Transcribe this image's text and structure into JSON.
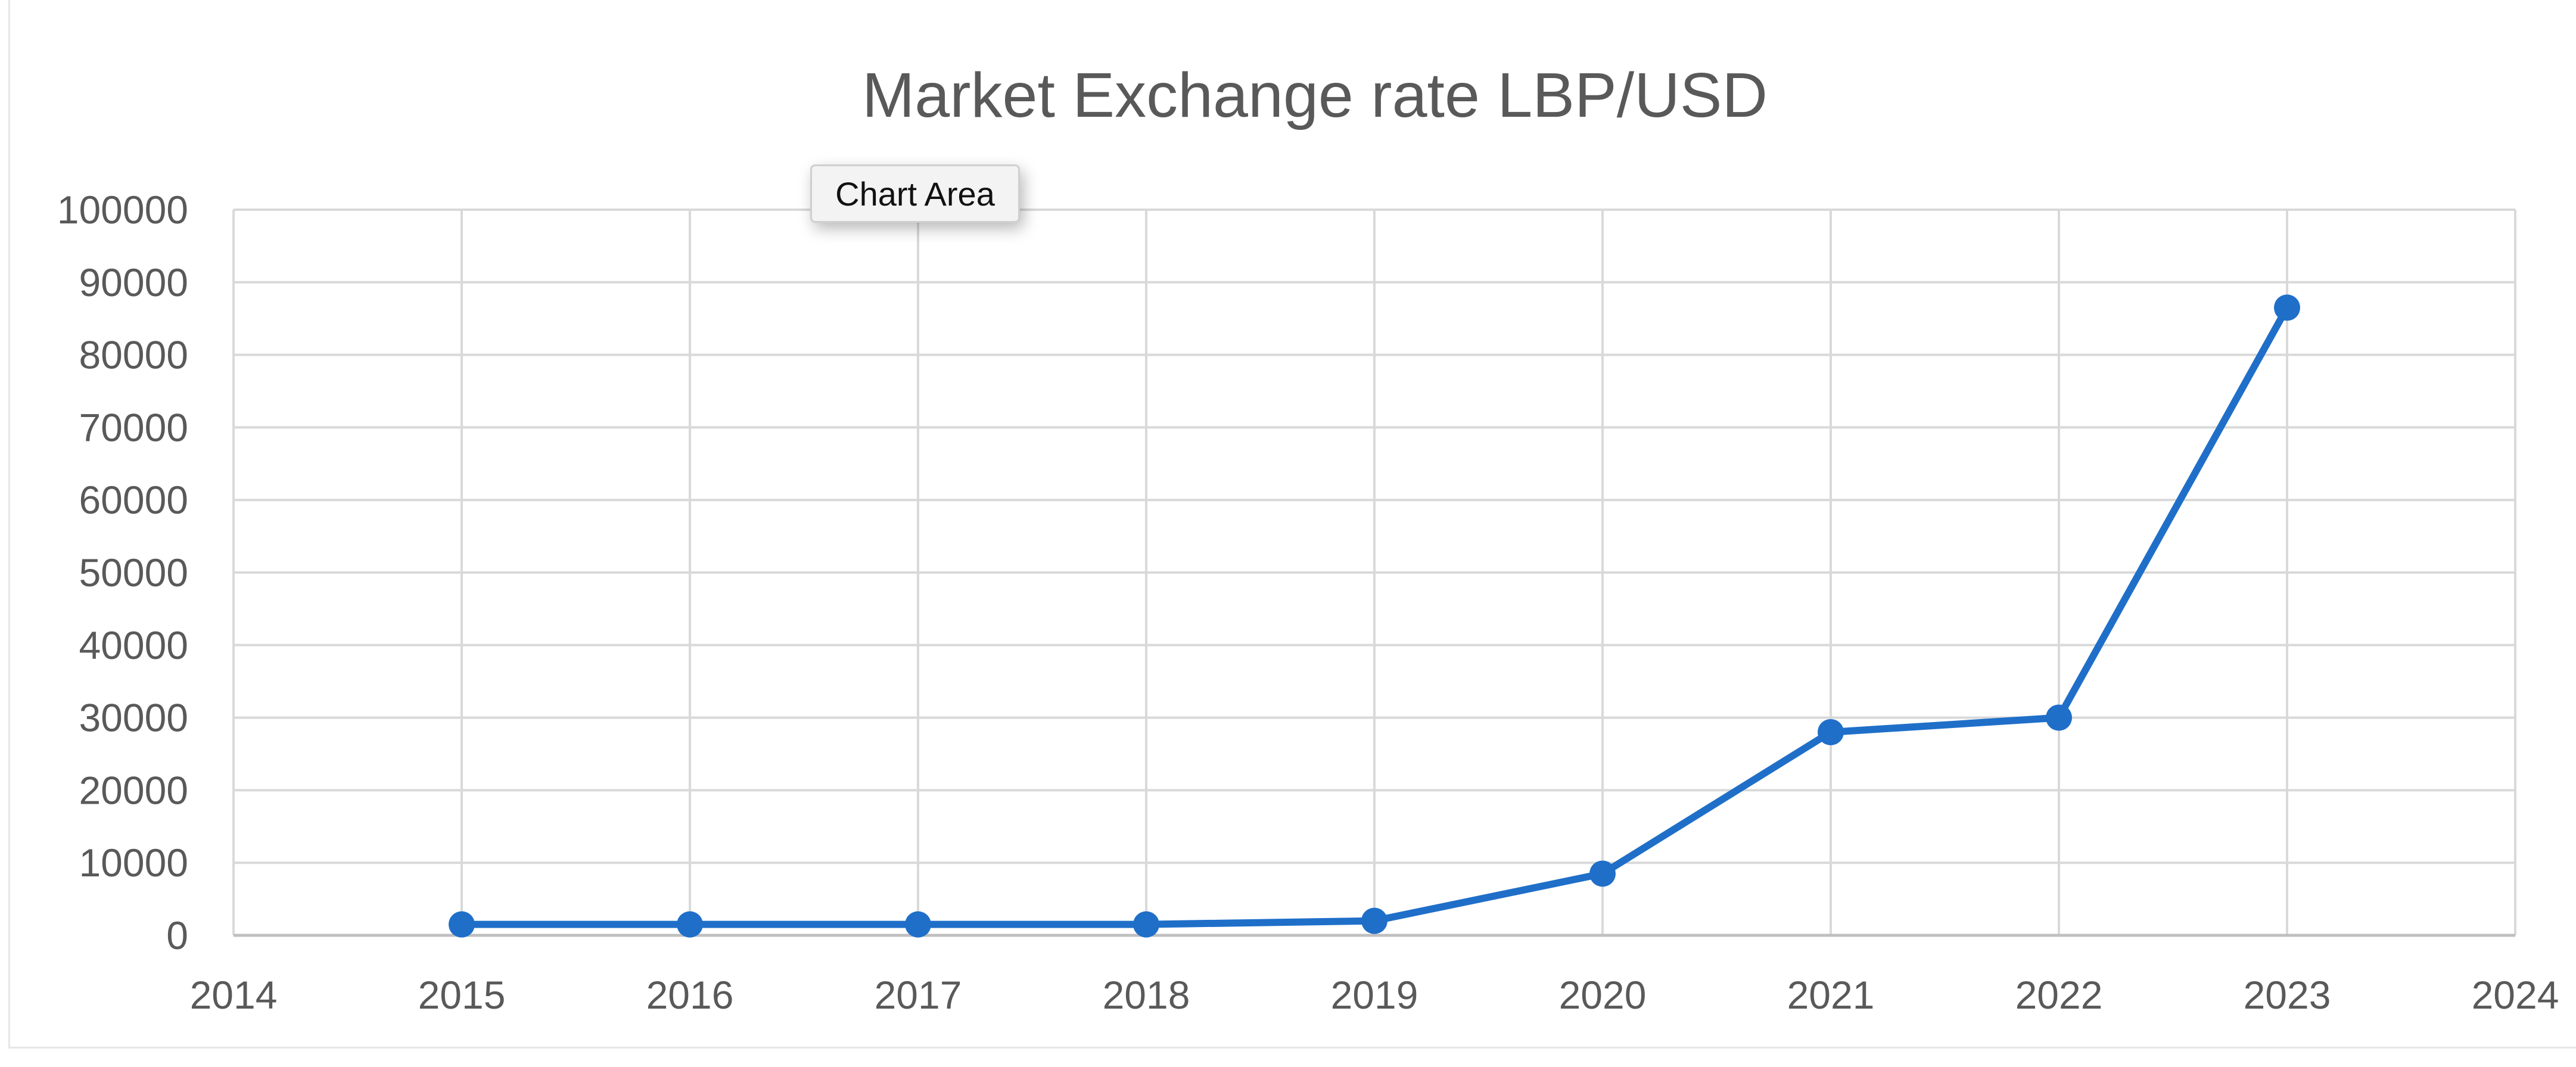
{
  "tooltip": {
    "label": "Chart Area"
  },
  "colors": {
    "series": "#1f6fc9",
    "grid": "#d9d9d9",
    "text": "#595959"
  },
  "chart_data": {
    "type": "line",
    "title": "Market Exchange rate LBP/USD",
    "xlabel": "",
    "ylabel": "",
    "x": [
      2015,
      2016,
      2017,
      2018,
      2019,
      2020,
      2021,
      2022,
      2023
    ],
    "series": [
      {
        "values": [
          1507,
          1507,
          1507,
          1507,
          2000,
          8500,
          28000,
          30000,
          86500
        ]
      }
    ],
    "xlim": [
      2014,
      2024
    ],
    "ylim": [
      0,
      100000
    ],
    "xticks": [
      "2014",
      "2015",
      "2016",
      "2017",
      "2018",
      "2019",
      "2020",
      "2021",
      "2022",
      "2023",
      "2024"
    ],
    "yticks": [
      "0",
      "10000",
      "20000",
      "30000",
      "40000",
      "50000",
      "60000",
      "70000",
      "80000",
      "90000",
      "100000"
    ],
    "grid": true,
    "legend": "none",
    "markers": true
  }
}
